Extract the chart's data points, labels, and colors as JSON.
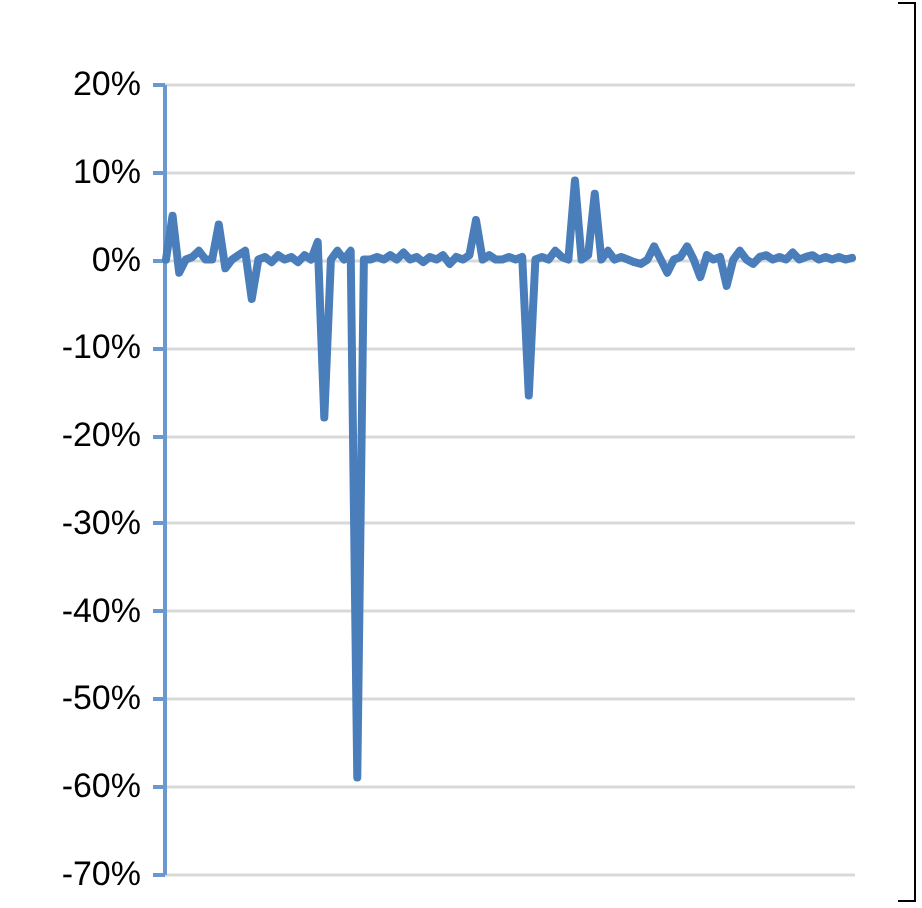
{
  "chart_data": {
    "type": "line",
    "categories": [
      null,
      null,
      null,
      null,
      null,
      null,
      null,
      null,
      null,
      null,
      null,
      null,
      null,
      null,
      null,
      null,
      null,
      null,
      null,
      null,
      null,
      null,
      null,
      null,
      null,
      null,
      null,
      null,
      null,
      null,
      null,
      null,
      null,
      null,
      null,
      null,
      null,
      null,
      null,
      null,
      null,
      null,
      null,
      null,
      null,
      null,
      null,
      null,
      null,
      null,
      null,
      null,
      null,
      null,
      null,
      null,
      null,
      null,
      null,
      null,
      null,
      null,
      null,
      null,
      null,
      null,
      null,
      null,
      null,
      null,
      null,
      null,
      null,
      null,
      null,
      null,
      null,
      null,
      null,
      null,
      null,
      null,
      null,
      null,
      null,
      null,
      null,
      null,
      null,
      null,
      null,
      null,
      null,
      null,
      null,
      null,
      null,
      null,
      null,
      null,
      null,
      null,
      null,
      null,
      null
    ],
    "series": [
      {
        "color": "#4a7ebb",
        "values": [
          0,
          5,
          -1.5,
          0,
          0.3,
          1,
          0,
          0,
          4,
          -1,
          0,
          0.5,
          1,
          -4.5,
          0,
          0.3,
          -0.3,
          0.5,
          0,
          0.3,
          -0.3,
          0.5,
          0,
          2,
          -18,
          0,
          1,
          0,
          1,
          -59,
          0,
          0,
          0.3,
          0,
          0.5,
          0,
          0.8,
          0,
          0.3,
          -0.3,
          0.3,
          0,
          0.5,
          -0.5,
          0.3,
          0,
          0.5,
          4.5,
          0,
          0.5,
          0,
          0,
          0.3,
          0,
          0.3,
          -15.5,
          0,
          0.3,
          0,
          1,
          0.3,
          0,
          9,
          0,
          0.5,
          7.5,
          0,
          1,
          0,
          0.3,
          0,
          -0.3,
          -0.5,
          0,
          1.5,
          0,
          -1.5,
          0,
          0.3,
          1.5,
          0,
          -2,
          0.5,
          0,
          0.3,
          -3,
          0,
          1,
          0,
          -0.5,
          0.3,
          0.5,
          0,
          0.3,
          0,
          0.8,
          0,
          0.3,
          0.5,
          0,
          0.3,
          0,
          0.3,
          0,
          0.2
        ]
      }
    ],
    "ylim": [
      -70,
      20
    ],
    "yticks": [
      {
        "value": -70,
        "label": "-70%"
      },
      {
        "value": -60,
        "label": "-60%"
      },
      {
        "value": -50,
        "label": "-50%"
      },
      {
        "value": -40,
        "label": "-40%"
      },
      {
        "value": -30,
        "label": "-30%"
      },
      {
        "value": -20,
        "label": "-20%"
      },
      {
        "value": -10,
        "label": "-10%"
      },
      {
        "value": 0,
        "label": "0%"
      },
      {
        "value": 10,
        "label": "10%"
      },
      {
        "value": 20,
        "label": "20%"
      }
    ],
    "grid": "y",
    "tick_labels": "y",
    "marker": "none",
    "line_style": "solid"
  }
}
